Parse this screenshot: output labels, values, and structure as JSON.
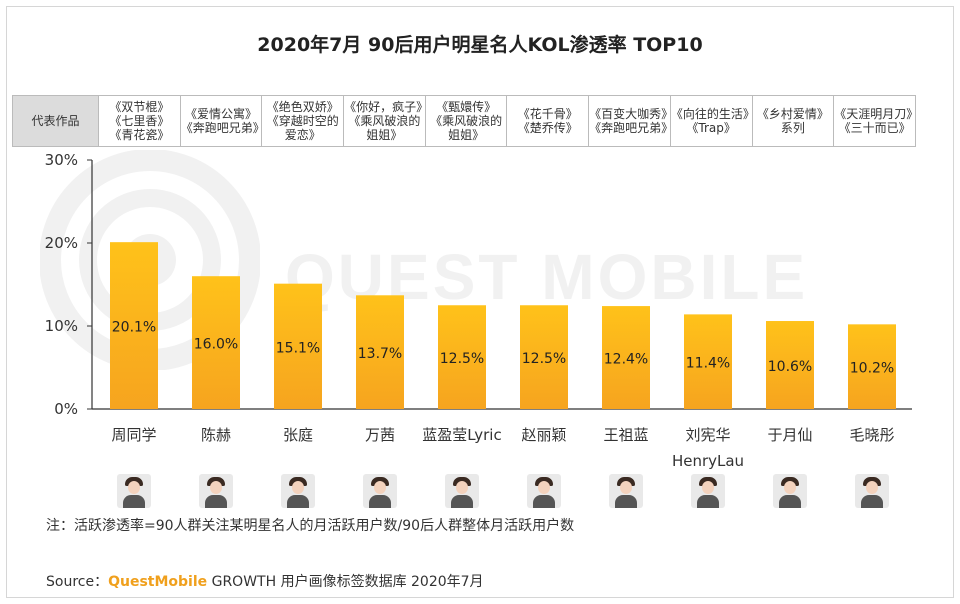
{
  "title": "2020年7月 90后用户明星名人KOL渗透率 TOP10",
  "watermark": "QUEST MOBILE",
  "works_header": "代表作品",
  "works": [
    [
      "《双节棍》",
      "《七里香》",
      "《青花瓷》"
    ],
    [
      "《爱情公寓》",
      "《奔跑吧兄弟》"
    ],
    [
      "《绝色双娇》",
      "《穿越时空的",
      "爱恋》"
    ],
    [
      "《你好，疯子》",
      "《乘风破浪的",
      "姐姐》"
    ],
    [
      "《甄嬛传》",
      "《乘风破浪的",
      "姐姐》"
    ],
    [
      "《花千骨》",
      "《楚乔传》"
    ],
    [
      "《百变大咖秀》",
      "《奔跑吧兄弟》"
    ],
    [
      "《向往的生活》",
      "《Trap》"
    ],
    [
      "《乡村爱情》",
      "系列"
    ],
    [
      "《天涯明月刀》",
      "《三十而已》"
    ]
  ],
  "chart_data": {
    "type": "bar",
    "title": "2020年7月 90后用户明星名人KOL渗透率 TOP10",
    "categories": [
      "周同学",
      "陈赫",
      "张庭",
      "万茜",
      "蓝盈莹Lyric",
      "赵丽颖",
      "王祖蓝",
      "刘宪华 HenryLau",
      "于月仙",
      "毛晓彤"
    ],
    "category_lines": [
      [
        "周同学"
      ],
      [
        "陈赫"
      ],
      [
        "张庭"
      ],
      [
        "万茜"
      ],
      [
        "蓝盈莹Lyric"
      ],
      [
        "赵丽颖"
      ],
      [
        "王祖蓝"
      ],
      [
        "刘宪华",
        "HenryLau"
      ],
      [
        "于月仙"
      ],
      [
        "毛晓彤"
      ]
    ],
    "values": [
      20.1,
      16.0,
      15.1,
      13.7,
      12.5,
      12.5,
      12.4,
      11.4,
      10.6,
      10.2
    ],
    "value_labels": [
      "20.1%",
      "16.0%",
      "15.1%",
      "13.7%",
      "12.5%",
      "12.5%",
      "12.4%",
      "11.4%",
      "10.6%",
      "10.2%"
    ],
    "yticks": [
      0,
      10,
      20,
      30
    ],
    "ytick_labels": [
      "0%",
      "10%",
      "20%",
      "30%"
    ],
    "ylim": [
      0,
      30
    ],
    "grid": false,
    "colors": {
      "bar_top": "#ffc21a",
      "bar_bottom": "#f6a41f",
      "axis": "#333333"
    }
  },
  "avatars": [
    "avatar-周同学",
    "avatar-陈赫",
    "avatar-张庭",
    "avatar-万茜",
    "avatar-蓝盈莹",
    "avatar-赵丽颖",
    "avatar-王祖蓝",
    "avatar-刘宪华",
    "avatar-于月仙",
    "avatar-毛晓彤"
  ],
  "note": "注：活跃渗透率=90人群关注某明星名人的月活跃用户数/90后人群整体月活跃用户数",
  "source": {
    "prefix": "Source：",
    "brand": "QuestMobile",
    "suffix": " GROWTH 用户画像标签数据库 2020年7月"
  }
}
